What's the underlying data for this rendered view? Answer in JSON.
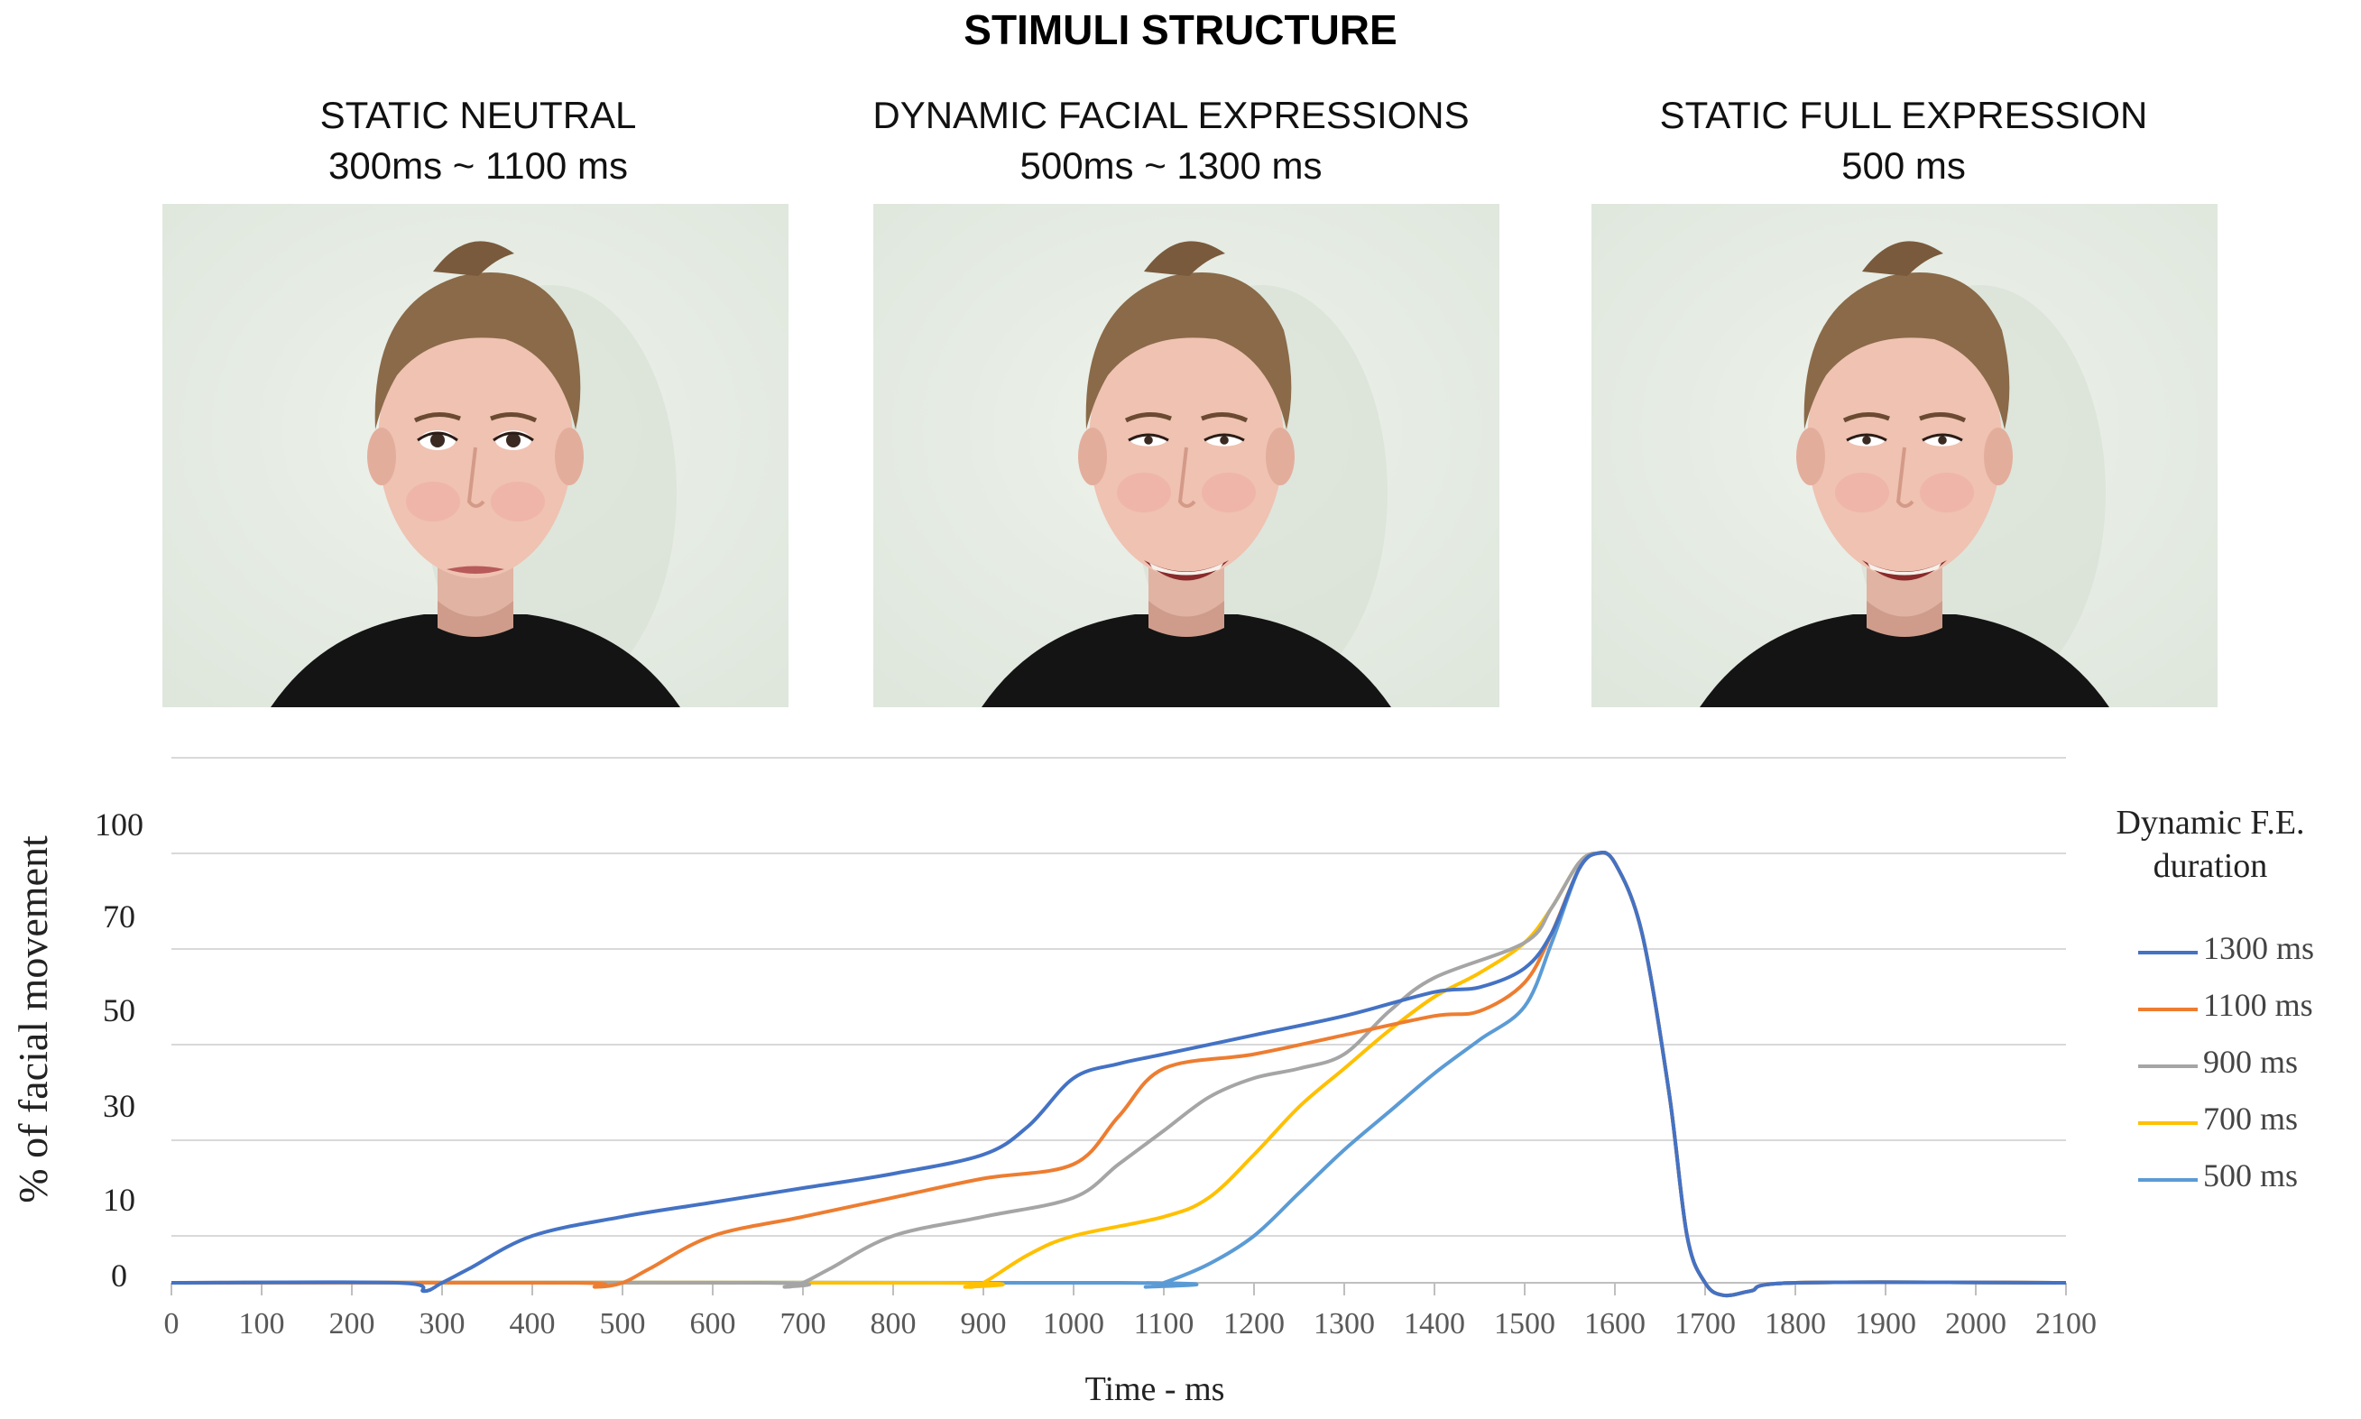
{
  "header": {
    "title": "STIMULI STRUCTURE"
  },
  "panels": [
    {
      "line1": "STATIC NEUTRAL",
      "line2": "300ms ~ 1100 ms",
      "expression": "neutral"
    },
    {
      "line1": "DYNAMIC FACIAL EXPRESSIONS",
      "line2": "500ms ~ 1300 ms",
      "expression": "smile"
    },
    {
      "line1": "STATIC FULL EXPRESSION",
      "line2": "500 ms",
      "expression": "smile"
    }
  ],
  "chart_data": {
    "type": "line",
    "xlabel": "Time - ms",
    "ylabel": "% of facial movement",
    "xlim": [
      0,
      2100
    ],
    "x_ticks": [
      "0",
      "100",
      "200",
      "300",
      "400",
      "500",
      "600",
      "700",
      "800",
      "900",
      "1000",
      "1100",
      "1200",
      "1300",
      "1400",
      "1500",
      "1600",
      "1700",
      "1800",
      "1900",
      "2000",
      "2100"
    ],
    "y_ticks": [
      "0",
      "10",
      "30",
      "50",
      "70",
      "100"
    ],
    "grid": "horizontal",
    "legend": {
      "title_line1": "Dynamic F.E.",
      "title_line2": "duration",
      "position": "right"
    },
    "series": [
      {
        "name": "1300 ms",
        "color": "#4472c4",
        "points": [
          [
            0,
            0
          ],
          [
            250,
            0
          ],
          [
            280,
            -2
          ],
          [
            300,
            0
          ],
          [
            330,
            3
          ],
          [
            400,
            10
          ],
          [
            500,
            14
          ],
          [
            600,
            17
          ],
          [
            700,
            20
          ],
          [
            800,
            23
          ],
          [
            900,
            27
          ],
          [
            950,
            33
          ],
          [
            1000,
            43
          ],
          [
            1050,
            46
          ],
          [
            1100,
            48
          ],
          [
            1200,
            52
          ],
          [
            1300,
            56
          ],
          [
            1400,
            61
          ],
          [
            1450,
            62
          ],
          [
            1500,
            66
          ],
          [
            1530,
            75
          ],
          [
            1560,
            95
          ],
          [
            1580,
            100
          ],
          [
            1600,
            97
          ],
          [
            1630,
            75
          ],
          [
            1660,
            40
          ],
          [
            1680,
            10
          ],
          [
            1700,
            0
          ],
          [
            1720,
            -3
          ],
          [
            1750,
            -2
          ],
          [
            1800,
            0
          ],
          [
            2100,
            0
          ]
        ]
      },
      {
        "name": "1100 ms",
        "color": "#ed7d31",
        "points": [
          [
            0,
            0
          ],
          [
            440,
            0
          ],
          [
            470,
            -1
          ],
          [
            500,
            0
          ],
          [
            530,
            3
          ],
          [
            600,
            10
          ],
          [
            700,
            14
          ],
          [
            800,
            18
          ],
          [
            900,
            22
          ],
          [
            1000,
            25
          ],
          [
            1050,
            35
          ],
          [
            1100,
            45
          ],
          [
            1200,
            48
          ],
          [
            1300,
            52
          ],
          [
            1400,
            56
          ],
          [
            1450,
            57
          ],
          [
            1500,
            63
          ],
          [
            1530,
            75
          ],
          [
            1560,
            95
          ],
          [
            1580,
            100
          ],
          [
            1600,
            97
          ],
          [
            1630,
            75
          ],
          [
            1660,
            40
          ],
          [
            1680,
            10
          ],
          [
            1700,
            0
          ],
          [
            1720,
            -3
          ],
          [
            1750,
            -2
          ],
          [
            1800,
            0
          ],
          [
            2100,
            0
          ]
        ]
      },
      {
        "name": "900 ms",
        "color": "#a5a5a5",
        "points": [
          [
            0,
            0
          ],
          [
            650,
            0
          ],
          [
            680,
            -1
          ],
          [
            700,
            0
          ],
          [
            730,
            3
          ],
          [
            800,
            10
          ],
          [
            900,
            14
          ],
          [
            1000,
            18
          ],
          [
            1050,
            25
          ],
          [
            1100,
            32
          ],
          [
            1150,
            39
          ],
          [
            1200,
            43
          ],
          [
            1250,
            45
          ],
          [
            1300,
            48
          ],
          [
            1350,
            57
          ],
          [
            1400,
            64
          ],
          [
            1500,
            72
          ],
          [
            1530,
            83
          ],
          [
            1560,
            97
          ],
          [
            1580,
            100
          ],
          [
            1600,
            97
          ],
          [
            1630,
            75
          ],
          [
            1660,
            40
          ],
          [
            1680,
            10
          ],
          [
            1700,
            0
          ],
          [
            1720,
            -3
          ],
          [
            1750,
            -2
          ],
          [
            1800,
            0
          ],
          [
            2100,
            0
          ]
        ]
      },
      {
        "name": "700 ms",
        "color": "#ffc000",
        "points": [
          [
            0,
            0
          ],
          [
            850,
            0
          ],
          [
            880,
            -1
          ],
          [
            900,
            0
          ],
          [
            950,
            6
          ],
          [
            1000,
            10
          ],
          [
            1100,
            14
          ],
          [
            1150,
            18
          ],
          [
            1200,
            27
          ],
          [
            1250,
            37
          ],
          [
            1300,
            45
          ],
          [
            1350,
            53
          ],
          [
            1400,
            60
          ],
          [
            1450,
            65
          ],
          [
            1500,
            72
          ],
          [
            1530,
            83
          ],
          [
            1560,
            97
          ],
          [
            1580,
            100
          ],
          [
            1600,
            97
          ],
          [
            1630,
            75
          ],
          [
            1660,
            40
          ],
          [
            1680,
            10
          ],
          [
            1700,
            0
          ],
          [
            1720,
            -3
          ],
          [
            1750,
            -2
          ],
          [
            1800,
            0
          ],
          [
            2100,
            0
          ]
        ]
      },
      {
        "name": "500 ms",
        "color": "#5b9bd5",
        "points": [
          [
            0,
            0
          ],
          [
            1050,
            0
          ],
          [
            1080,
            -1
          ],
          [
            1100,
            0
          ],
          [
            1150,
            4
          ],
          [
            1200,
            10
          ],
          [
            1250,
            19
          ],
          [
            1300,
            28
          ],
          [
            1350,
            36
          ],
          [
            1400,
            44
          ],
          [
            1450,
            51
          ],
          [
            1500,
            58
          ],
          [
            1530,
            72
          ],
          [
            1560,
            95
          ],
          [
            1580,
            100
          ],
          [
            1600,
            97
          ],
          [
            1630,
            75
          ],
          [
            1660,
            40
          ],
          [
            1680,
            10
          ],
          [
            1700,
            0
          ],
          [
            1720,
            -3
          ],
          [
            1750,
            -2
          ],
          [
            1800,
            0
          ],
          [
            2100,
            0
          ]
        ]
      }
    ]
  }
}
